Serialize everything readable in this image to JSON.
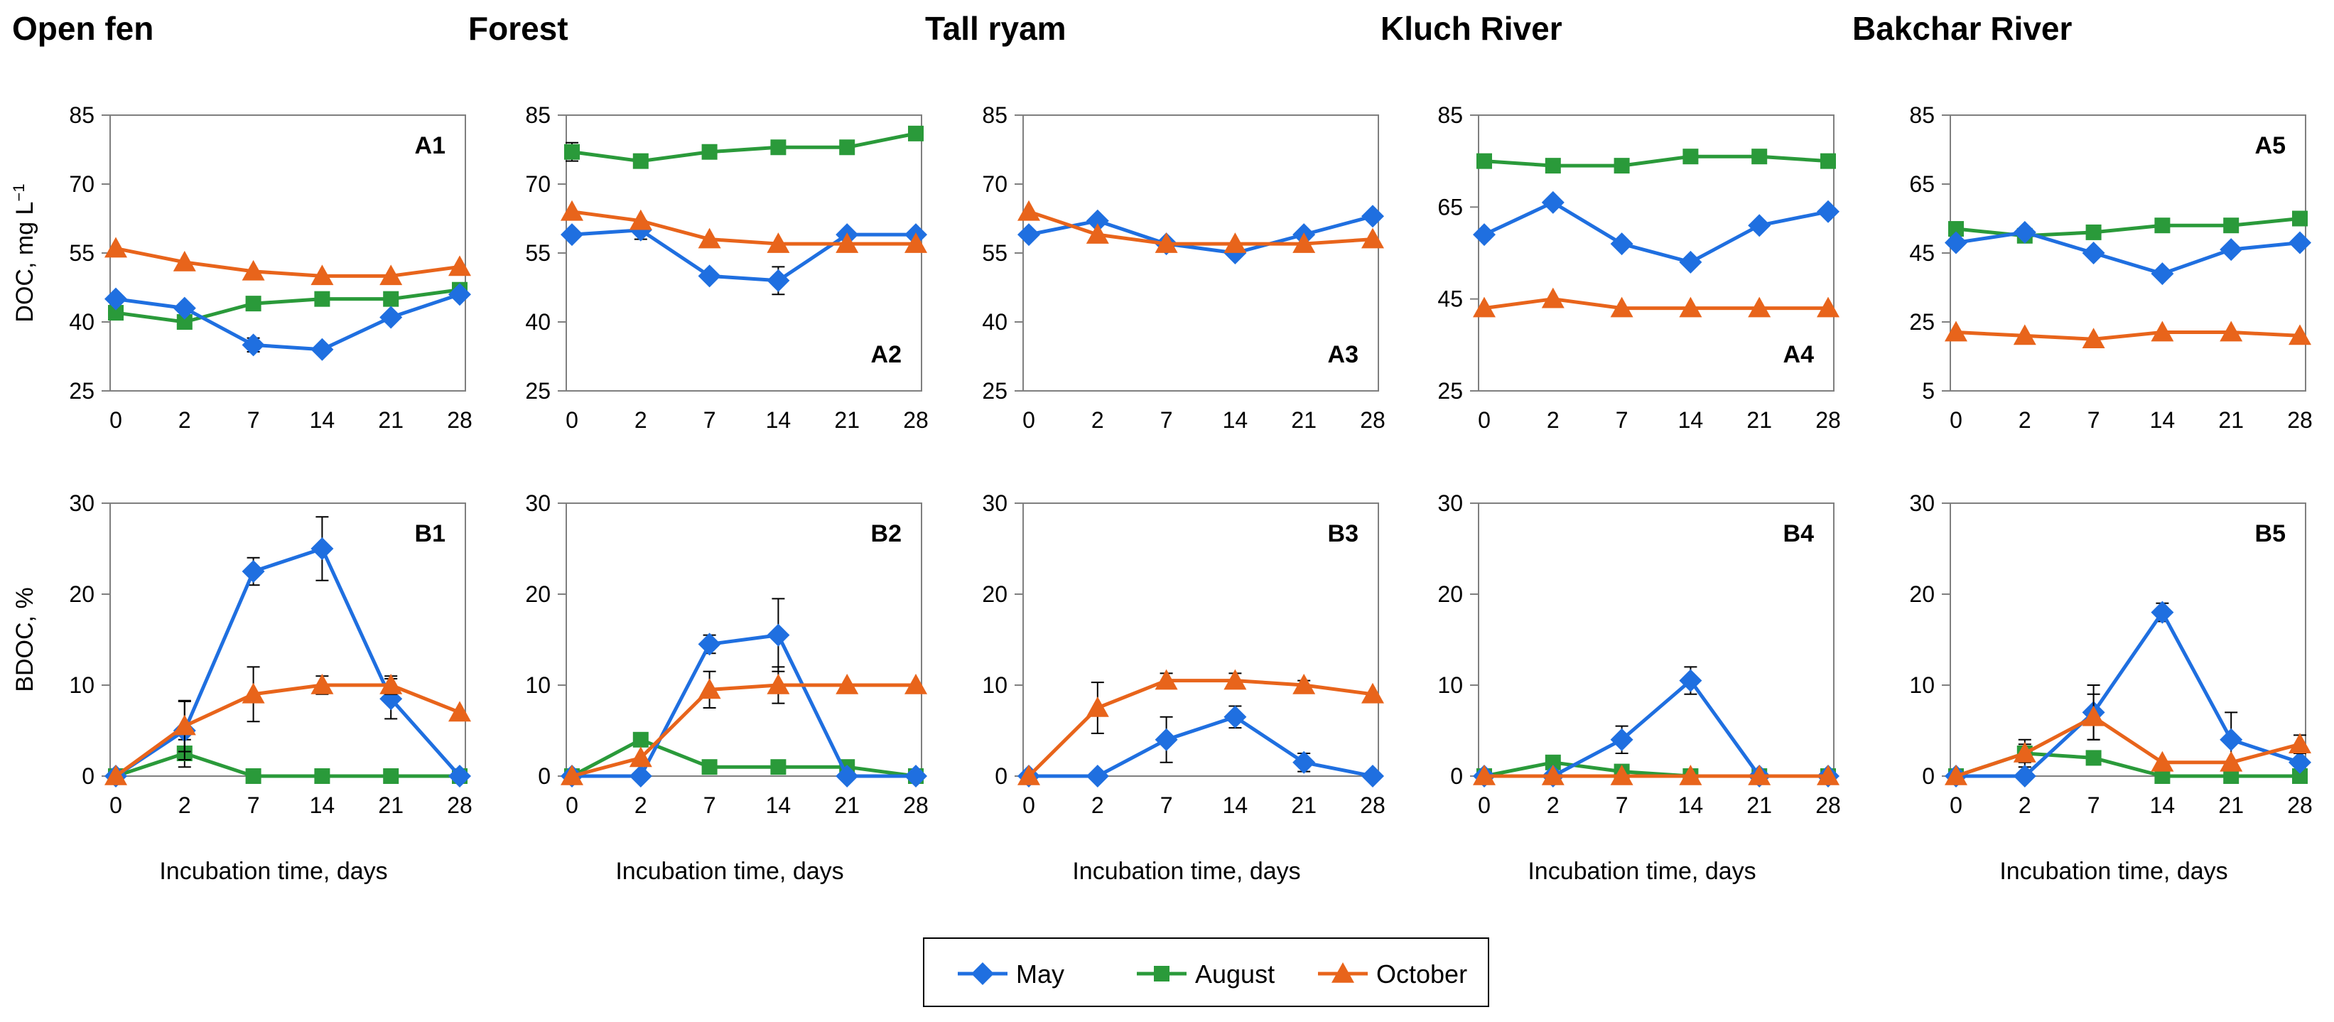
{
  "colors": {
    "May": "#1f6fe0",
    "August": "#2a9a3a",
    "October": "#e8641b"
  },
  "legend": [
    {
      "name": "May",
      "marker": "diamond"
    },
    {
      "name": "August",
      "marker": "square"
    },
    {
      "name": "October",
      "marker": "triangle"
    }
  ],
  "y_label_doc": "DOC, mg L",
  "y_label_doc_sup": "−1",
  "y_label_bdoc": "BDOC, %",
  "chart_data": [
    {
      "type": "line",
      "site": "Open fen",
      "panel": "A1",
      "xlabel": "",
      "ylabel": "DOC, mg L−1",
      "categories": [
        "0",
        "2",
        "7",
        "14",
        "21",
        "28"
      ],
      "ylim": [
        25,
        85
      ],
      "yticks": [
        25,
        40,
        55,
        70,
        85
      ],
      "label_pos": "top",
      "series": [
        {
          "name": "May",
          "values": [
            45,
            43,
            35,
            34,
            41,
            46
          ],
          "err": [
            0,
            0,
            1.5,
            0,
            0,
            0
          ]
        },
        {
          "name": "August",
          "values": [
            42,
            40,
            44,
            45,
            45,
            47
          ],
          "err": [
            0,
            0,
            0,
            0,
            0,
            0
          ]
        },
        {
          "name": "October",
          "values": [
            56,
            53,
            51,
            50,
            50,
            52
          ],
          "err": [
            0,
            0,
            0,
            0,
            0,
            0
          ]
        }
      ]
    },
    {
      "type": "line",
      "site": "Forest",
      "panel": "A2",
      "xlabel": "",
      "ylabel": "",
      "categories": [
        "0",
        "2",
        "7",
        "14",
        "21",
        "28"
      ],
      "ylim": [
        25,
        85
      ],
      "yticks": [
        25,
        40,
        55,
        70,
        85
      ],
      "label_pos": "bottom",
      "series": [
        {
          "name": "May",
          "values": [
            59,
            60,
            50,
            49,
            59,
            59
          ],
          "err": [
            0,
            2,
            0,
            3,
            0,
            0
          ]
        },
        {
          "name": "August",
          "values": [
            77,
            75,
            77,
            78,
            78,
            81
          ],
          "err": [
            2,
            0,
            0,
            0,
            0,
            0
          ]
        },
        {
          "name": "October",
          "values": [
            64,
            62,
            58,
            57,
            57,
            57
          ],
          "err": [
            0,
            0,
            0,
            0,
            0,
            0
          ]
        }
      ]
    },
    {
      "type": "line",
      "site": "Tall ryam",
      "panel": "A3",
      "xlabel": "",
      "ylabel": "",
      "categories": [
        "0",
        "2",
        "7",
        "14",
        "21",
        "28"
      ],
      "ylim": [
        25,
        85
      ],
      "yticks": [
        25,
        40,
        55,
        70,
        85
      ],
      "label_pos": "bottom",
      "series": [
        {
          "name": "May",
          "values": [
            59,
            62,
            57,
            55,
            59,
            63
          ],
          "err": [
            0,
            0,
            0,
            0,
            0,
            0
          ]
        },
        {
          "name": "October",
          "values": [
            64,
            59,
            57,
            57,
            57,
            58
          ],
          "err": [
            0,
            0,
            0,
            0,
            0,
            0
          ]
        }
      ]
    },
    {
      "type": "line",
      "site": "Kluch River",
      "panel": "A4",
      "xlabel": "",
      "ylabel": "",
      "categories": [
        "0",
        "2",
        "7",
        "14",
        "21",
        "28"
      ],
      "ylim": [
        25,
        85
      ],
      "yticks": [
        25,
        45,
        65,
        85
      ],
      "label_pos": "bottom",
      "series": [
        {
          "name": "May",
          "values": [
            59,
            66,
            57,
            53,
            61,
            64
          ],
          "err": [
            0,
            0,
            0,
            0,
            0,
            0
          ]
        },
        {
          "name": "August",
          "values": [
            75,
            74,
            74,
            76,
            76,
            75
          ],
          "err": [
            0,
            0,
            0,
            0,
            0,
            0
          ]
        },
        {
          "name": "October",
          "values": [
            43,
            45,
            43,
            43,
            43,
            43
          ],
          "err": [
            0,
            0,
            0,
            0,
            0,
            0
          ]
        }
      ]
    },
    {
      "type": "line",
      "site": "Bakchar River",
      "panel": "A5",
      "xlabel": "",
      "ylabel": "",
      "categories": [
        "0",
        "2",
        "7",
        "14",
        "21",
        "28"
      ],
      "ylim": [
        5,
        85
      ],
      "yticks": [
        5,
        25,
        45,
        65,
        85
      ],
      "label_pos": "top",
      "series": [
        {
          "name": "May",
          "values": [
            48,
            51,
            45,
            39,
            46,
            48
          ],
          "err": [
            0,
            0,
            0,
            0,
            0,
            0
          ]
        },
        {
          "name": "August",
          "values": [
            52,
            50,
            51,
            53,
            53,
            55
          ],
          "err": [
            0,
            0,
            0,
            0,
            0,
            0
          ]
        },
        {
          "name": "October",
          "values": [
            22,
            21,
            20,
            22,
            22,
            21
          ],
          "err": [
            0,
            0,
            0,
            0,
            0,
            0
          ]
        }
      ]
    },
    {
      "type": "line",
      "site": "Open fen",
      "panel": "B1",
      "xlabel": "Incubation time, days",
      "ylabel": "BDOC, %",
      "categories": [
        "0",
        "2",
        "7",
        "14",
        "21",
        "28"
      ],
      "ylim": [
        0,
        30
      ],
      "yticks": [
        0,
        10,
        20,
        30
      ],
      "label_pos": "top",
      "series": [
        {
          "name": "May",
          "values": [
            0,
            5,
            22.5,
            25,
            8.5,
            0
          ],
          "err": [
            0,
            3.2,
            1.5,
            3.5,
            2.2,
            0
          ]
        },
        {
          "name": "August",
          "values": [
            0,
            2.5,
            0,
            0,
            0,
            0
          ],
          "err": [
            0,
            1.5,
            0,
            0,
            0,
            0
          ]
        },
        {
          "name": "October",
          "values": [
            0,
            5.5,
            9,
            10,
            10,
            7
          ],
          "err": [
            0,
            2.8,
            3,
            1,
            1,
            0
          ]
        }
      ]
    },
    {
      "type": "line",
      "site": "Forest",
      "panel": "B2",
      "xlabel": "Incubation time, days",
      "ylabel": "",
      "categories": [
        "0",
        "2",
        "7",
        "14",
        "21",
        "28"
      ],
      "ylim": [
        0,
        30
      ],
      "yticks": [
        0,
        10,
        20,
        30
      ],
      "label_pos": "top",
      "series": [
        {
          "name": "May",
          "values": [
            0,
            0,
            14.5,
            15.5,
            0,
            0
          ],
          "err": [
            0,
            0,
            1,
            4,
            0,
            0
          ]
        },
        {
          "name": "August",
          "values": [
            0,
            4,
            1,
            1,
            1,
            0
          ],
          "err": [
            0,
            0,
            0,
            0,
            0,
            0
          ]
        },
        {
          "name": "October",
          "values": [
            0,
            2,
            9.5,
            10,
            10,
            10
          ],
          "err": [
            0,
            0,
            2,
            2,
            0,
            0
          ]
        }
      ]
    },
    {
      "type": "line",
      "site": "Tall ryam",
      "panel": "B3",
      "xlabel": "Incubation time, days",
      "ylabel": "",
      "categories": [
        "0",
        "2",
        "7",
        "14",
        "21",
        "28"
      ],
      "ylim": [
        0,
        30
      ],
      "yticks": [
        0,
        10,
        20,
        30
      ],
      "label_pos": "top",
      "series": [
        {
          "name": "May",
          "values": [
            0,
            0,
            4,
            6.5,
            1.5,
            0
          ],
          "err": [
            0,
            0,
            2.5,
            1.2,
            1,
            0
          ]
        },
        {
          "name": "October",
          "values": [
            0,
            7.5,
            10.5,
            10.5,
            10,
            9
          ],
          "err": [
            0,
            2.8,
            0.8,
            0.8,
            0.5,
            0
          ]
        }
      ]
    },
    {
      "type": "line",
      "site": "Kluch River",
      "panel": "B4",
      "xlabel": "Incubation time, days",
      "ylabel": "",
      "categories": [
        "0",
        "2",
        "7",
        "14",
        "21",
        "28"
      ],
      "ylim": [
        0,
        30
      ],
      "yticks": [
        0,
        10,
        20,
        30
      ],
      "label_pos": "top",
      "series": [
        {
          "name": "May",
          "values": [
            0,
            0,
            4,
            10.5,
            0,
            0
          ],
          "err": [
            0,
            0,
            1.5,
            1.5,
            0,
            0
          ]
        },
        {
          "name": "August",
          "values": [
            0,
            1.5,
            0.5,
            0,
            0,
            0
          ],
          "err": [
            0,
            0,
            0,
            0,
            0,
            0
          ]
        },
        {
          "name": "October",
          "values": [
            0,
            0,
            0,
            0,
            0,
            0
          ],
          "err": [
            0,
            0,
            0,
            0,
            0,
            0
          ]
        }
      ]
    },
    {
      "type": "line",
      "site": "Bakchar River",
      "panel": "B5",
      "xlabel": "Incubation time, days",
      "ylabel": "",
      "categories": [
        "0",
        "2",
        "7",
        "14",
        "21",
        "28"
      ],
      "ylim": [
        0,
        30
      ],
      "yticks": [
        0,
        10,
        20,
        30
      ],
      "label_pos": "top",
      "series": [
        {
          "name": "May",
          "values": [
            0,
            0,
            7,
            18,
            4,
            1.5
          ],
          "err": [
            0,
            0,
            3,
            1,
            3,
            0
          ]
        },
        {
          "name": "August",
          "values": [
            0,
            2.5,
            2,
            0,
            0,
            0
          ],
          "err": [
            0,
            1.5,
            0,
            0,
            0,
            0
          ]
        },
        {
          "name": "October",
          "values": [
            0,
            2.5,
            6.5,
            1.5,
            1.5,
            3.5
          ],
          "err": [
            0,
            1,
            2.5,
            0,
            0,
            1
          ]
        }
      ]
    }
  ]
}
